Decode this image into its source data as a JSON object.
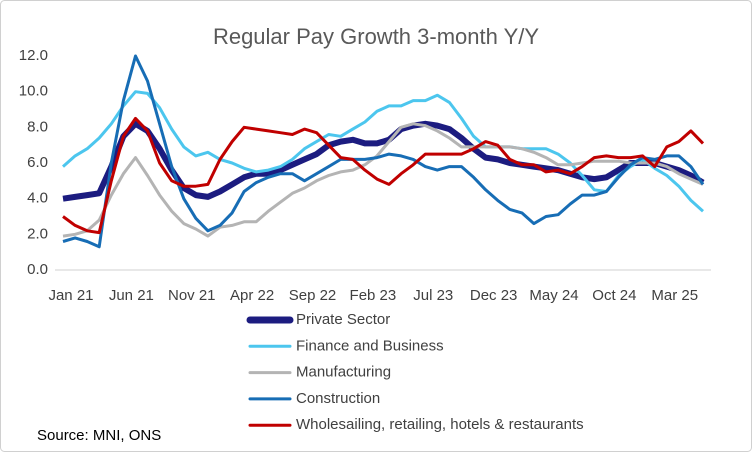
{
  "chart_data": {
    "type": "line",
    "title": "Regular Pay Growth 3-month Y/Y",
    "source": "Source: MNI, ONS",
    "categories": [
      "Jan 21",
      null,
      null,
      null,
      null,
      "Jun 21",
      null,
      null,
      null,
      null,
      "Nov 21",
      null,
      null,
      null,
      null,
      "Apr 22",
      null,
      null,
      null,
      null,
      "Sep 22",
      null,
      null,
      null,
      null,
      "Feb 23",
      null,
      null,
      null,
      null,
      "Jul 23",
      null,
      null,
      null,
      null,
      "Dec 23",
      null,
      null,
      null,
      null,
      "May 24",
      null,
      null,
      null,
      null,
      "Oct 24",
      null,
      null,
      null,
      null,
      "Mar 25",
      null,
      null,
      null
    ],
    "ylim": [
      0,
      12
    ],
    "yticks": [
      {
        "value": 0,
        "label": "0.0"
      },
      {
        "value": 2,
        "label": "2.0"
      },
      {
        "value": 4,
        "label": "4.0"
      },
      {
        "value": 6,
        "label": "6.0"
      },
      {
        "value": 8,
        "label": "8.0"
      },
      {
        "value": 10,
        "label": "10.0"
      },
      {
        "value": 12,
        "label": "12.0"
      }
    ],
    "grid": false,
    "legend": "bottom",
    "series": [
      {
        "name": "Private Sector",
        "color": "#1c1c80",
        "values": [
          4.0,
          4.1,
          4.2,
          4.3,
          5.8,
          7.5,
          8.2,
          7.8,
          6.8,
          5.6,
          4.6,
          4.2,
          4.1,
          4.4,
          4.8,
          5.2,
          5.4,
          5.4,
          5.6,
          5.9,
          6.2,
          6.5,
          7.0,
          7.2,
          7.3,
          7.1,
          7.1,
          7.3,
          7.9,
          8.1,
          8.2,
          8.1,
          7.9,
          7.4,
          6.8,
          6.3,
          6.2,
          6.0,
          5.9,
          5.8,
          5.7,
          5.6,
          5.4,
          5.2,
          5.1,
          5.2,
          5.6,
          6.0,
          6.0,
          6.0,
          5.8,
          5.6,
          5.3,
          4.9
        ]
      },
      {
        "name": "Finance and Business",
        "color": "#4cc6ee",
        "values": [
          5.8,
          6.4,
          6.8,
          7.4,
          8.2,
          9.2,
          10.0,
          9.9,
          9.1,
          7.9,
          6.9,
          6.4,
          6.6,
          6.2,
          6.0,
          5.7,
          5.5,
          5.6,
          5.8,
          6.2,
          6.8,
          7.2,
          7.6,
          7.5,
          7.9,
          8.3,
          8.9,
          9.2,
          9.2,
          9.5,
          9.5,
          9.8,
          9.4,
          8.5,
          7.5,
          6.9,
          6.9,
          6.9,
          6.8,
          6.8,
          6.8,
          6.5,
          6.0,
          5.3,
          4.5,
          4.4,
          5.3,
          5.8,
          6.2,
          5.7,
          5.3,
          4.7,
          3.9,
          3.3
        ]
      },
      {
        "name": "Manufacturing",
        "color": "#b4b4b4",
        "values": [
          1.9,
          2.0,
          2.2,
          2.8,
          4.2,
          5.4,
          6.3,
          5.3,
          4.2,
          3.3,
          2.6,
          2.3,
          1.9,
          2.4,
          2.5,
          2.7,
          2.7,
          3.3,
          3.8,
          4.3,
          4.6,
          5.0,
          5.3,
          5.5,
          5.6,
          5.9,
          6.4,
          7.2,
          8.0,
          8.2,
          8.1,
          7.8,
          7.4,
          6.9,
          6.9,
          6.9,
          6.9,
          6.9,
          6.8,
          6.6,
          6.3,
          5.9,
          5.9,
          6.0,
          6.1,
          6.1,
          6.1,
          6.0,
          6.0,
          6.0,
          5.8,
          5.4,
          5.1,
          4.8
        ]
      },
      {
        "name": "Construction",
        "color": "#176db5",
        "values": [
          1.6,
          1.8,
          1.6,
          1.3,
          6.0,
          9.5,
          12.0,
          10.6,
          8.2,
          5.8,
          4.0,
          2.9,
          2.2,
          2.5,
          3.2,
          4.4,
          4.9,
          5.2,
          5.4,
          5.4,
          5.0,
          5.4,
          5.8,
          6.2,
          6.2,
          6.2,
          6.3,
          6.5,
          6.4,
          6.2,
          5.8,
          5.6,
          5.8,
          5.8,
          5.2,
          4.5,
          3.9,
          3.4,
          3.2,
          2.6,
          3.0,
          3.1,
          3.7,
          4.2,
          4.2,
          4.4,
          5.2,
          5.9,
          6.3,
          6.2,
          6.4,
          6.4,
          5.8,
          4.8
        ]
      },
      {
        "name": "Wholesailing, retailing, hotels & restaurants",
        "color": "#c00000",
        "values": [
          3.0,
          2.5,
          2.2,
          2.1,
          5.0,
          7.5,
          8.5,
          7.8,
          6.0,
          5.0,
          4.7,
          4.7,
          4.8,
          6.2,
          7.2,
          8.0,
          7.9,
          7.8,
          7.7,
          7.6,
          7.9,
          7.7,
          7.0,
          6.3,
          6.2,
          5.6,
          5.1,
          4.8,
          5.4,
          5.9,
          6.5,
          6.5,
          6.5,
          6.5,
          6.8,
          7.2,
          7.0,
          6.2,
          5.9,
          5.9,
          5.5,
          5.6,
          5.4,
          5.8,
          6.3,
          6.4,
          6.3,
          6.3,
          6.4,
          5.8,
          6.9,
          7.2,
          7.8,
          7.1
        ]
      }
    ]
  }
}
